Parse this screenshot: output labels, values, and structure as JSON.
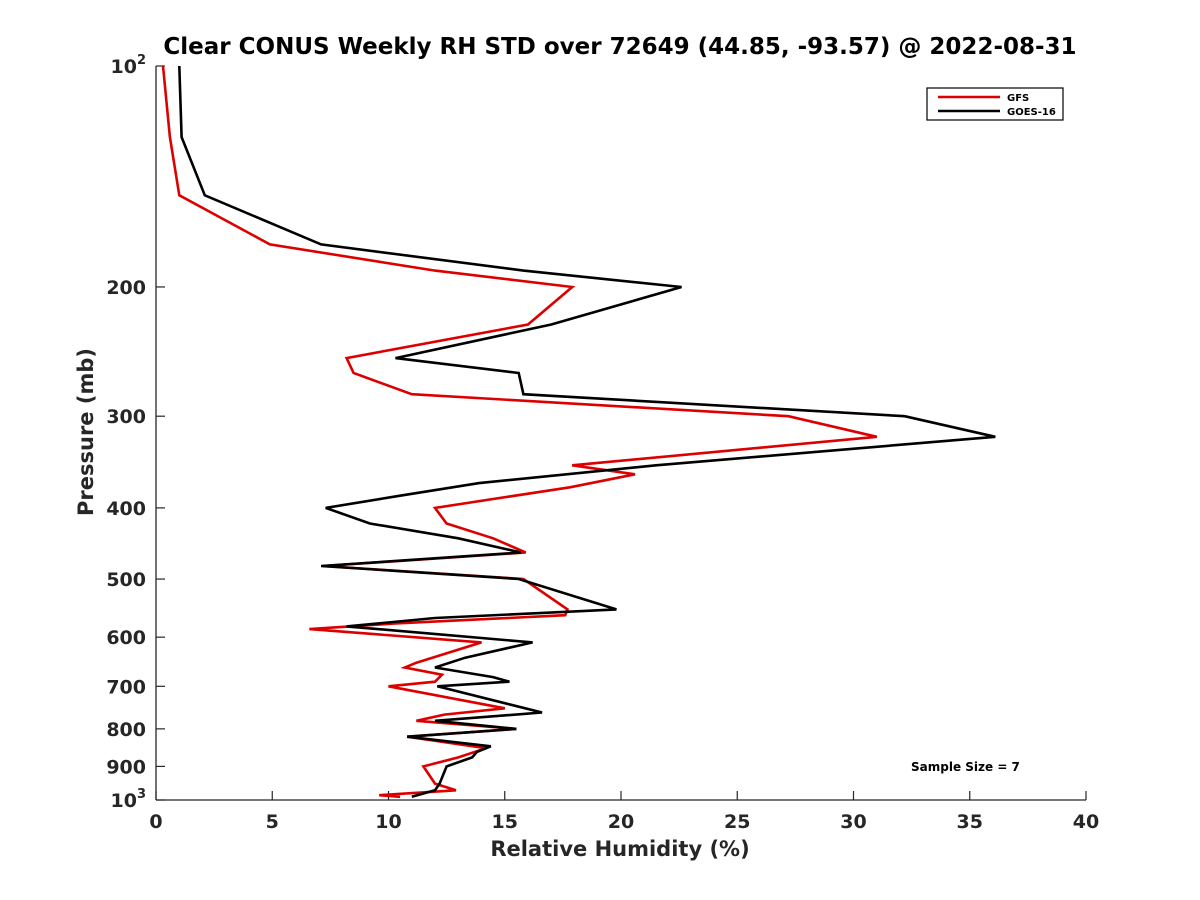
{
  "chart_data": {
    "type": "line",
    "title": "Clear CONUS Weekly RH STD over 72649 (44.85, -93.57) @ 2022-08-31",
    "xlabel": "Relative Humidity (%)",
    "ylabel": "Pressure (mb)",
    "xlim": [
      0,
      40
    ],
    "ylim": [
      100,
      1000
    ],
    "y_scale": "log",
    "y_reversed": true,
    "grid": false,
    "legend_position": "top-right",
    "x_ticks": [
      "0",
      "5",
      "10",
      "15",
      "20",
      "25",
      "30",
      "35",
      "40"
    ],
    "y_ticks": [
      {
        "value": 100,
        "base": "10",
        "exp": "2"
      },
      {
        "value": 200,
        "label": "200"
      },
      {
        "value": 300,
        "label": "300"
      },
      {
        "value": 400,
        "label": "400"
      },
      {
        "value": 500,
        "label": "500"
      },
      {
        "value": 600,
        "label": "600"
      },
      {
        "value": 700,
        "label": "700"
      },
      {
        "value": 800,
        "label": "800"
      },
      {
        "value": 900,
        "label": "900"
      },
      {
        "value": 1000,
        "base": "10",
        "exp": "3"
      }
    ],
    "series": [
      {
        "name": "GFS",
        "color": "#dd0000",
        "points": [
          [
            0.3,
            100
          ],
          [
            0.6,
            125
          ],
          [
            1.0,
            150
          ],
          [
            4.9,
            175
          ],
          [
            12.0,
            190
          ],
          [
            17.9,
            200
          ],
          [
            16.0,
            225
          ],
          [
            8.2,
            250
          ],
          [
            8.5,
            262
          ],
          [
            11.0,
            280
          ],
          [
            27.2,
            300
          ],
          [
            31.0,
            320
          ],
          [
            17.9,
            350
          ],
          [
            20.6,
            360
          ],
          [
            17.8,
            375
          ],
          [
            12.0,
            400
          ],
          [
            12.5,
            420
          ],
          [
            14.5,
            440
          ],
          [
            15.9,
            460
          ],
          [
            7.2,
            480
          ],
          [
            15.8,
            500
          ],
          [
            17.7,
            550
          ],
          [
            17.6,
            560
          ],
          [
            10.2,
            575
          ],
          [
            6.6,
            585
          ],
          [
            14.0,
            610
          ],
          [
            11.2,
            650
          ],
          [
            10.7,
            660
          ],
          [
            12.3,
            675
          ],
          [
            12.0,
            690
          ],
          [
            10.0,
            700
          ],
          [
            15.0,
            750
          ],
          [
            12.4,
            765
          ],
          [
            11.2,
            780
          ],
          [
            15.5,
            800
          ],
          [
            10.8,
            820
          ],
          [
            14.2,
            850
          ],
          [
            13.0,
            875
          ],
          [
            11.5,
            900
          ],
          [
            12.0,
            950
          ],
          [
            12.9,
            970
          ],
          [
            9.6,
            985
          ],
          [
            10.5,
            990
          ]
        ]
      },
      {
        "name": "GOES-16",
        "color": "#000000",
        "points": [
          [
            1.0,
            100
          ],
          [
            1.1,
            125
          ],
          [
            2.1,
            150
          ],
          [
            7.1,
            175
          ],
          [
            15.8,
            190
          ],
          [
            22.6,
            200
          ],
          [
            17.0,
            225
          ],
          [
            10.3,
            250
          ],
          [
            15.6,
            262
          ],
          [
            15.8,
            280
          ],
          [
            32.2,
            300
          ],
          [
            36.1,
            320
          ],
          [
            21.5,
            350
          ],
          [
            13.9,
            370
          ],
          [
            10.5,
            385
          ],
          [
            7.3,
            400
          ],
          [
            9.2,
            420
          ],
          [
            13.0,
            440
          ],
          [
            15.7,
            460
          ],
          [
            7.1,
            480
          ],
          [
            15.6,
            500
          ],
          [
            19.8,
            550
          ],
          [
            12.0,
            565
          ],
          [
            8.2,
            580
          ],
          [
            16.2,
            610
          ],
          [
            13.3,
            640
          ],
          [
            12.0,
            660
          ],
          [
            14.5,
            680
          ],
          [
            15.2,
            690
          ],
          [
            12.1,
            700
          ],
          [
            16.6,
            760
          ],
          [
            12.0,
            780
          ],
          [
            15.5,
            800
          ],
          [
            10.8,
            820
          ],
          [
            14.4,
            845
          ],
          [
            13.8,
            860
          ],
          [
            13.6,
            875
          ],
          [
            12.5,
            900
          ],
          [
            12.2,
            950
          ],
          [
            12.0,
            970
          ],
          [
            11.0,
            990
          ]
        ]
      }
    ],
    "legend": [
      "GFS",
      "GOES-16"
    ],
    "annotation": "Sample Size = 7"
  }
}
